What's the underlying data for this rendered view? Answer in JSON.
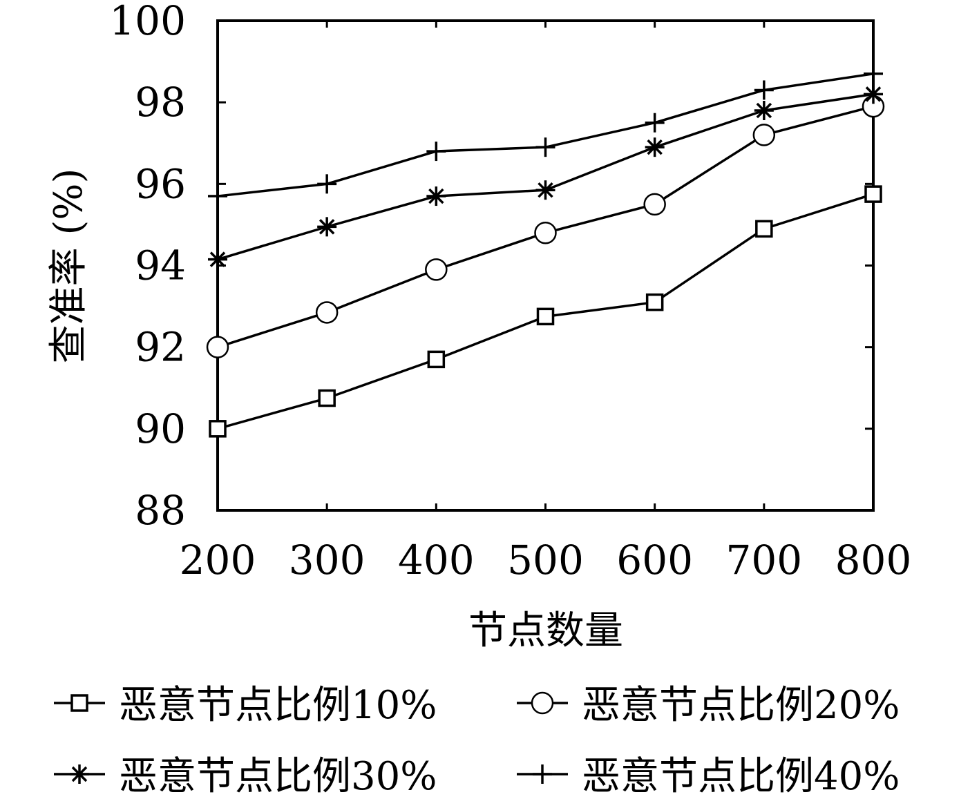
{
  "chart_data": {
    "type": "line",
    "xlabel": "节点数量",
    "ylabel": "查准率 (%)",
    "x": [
      200,
      300,
      400,
      500,
      600,
      700,
      800
    ],
    "xticks": [
      "200",
      "300",
      "400",
      "500",
      "600",
      "700",
      "800"
    ],
    "yticks": [
      "88",
      "90",
      "92",
      "94",
      "96",
      "98",
      "100"
    ],
    "xlim": [
      200,
      800
    ],
    "ylim": [
      88,
      100
    ],
    "grid": false,
    "legend_position": "bottom",
    "line_color": "#000000",
    "series": [
      {
        "name": "恶意节点比例10%",
        "marker": "square",
        "values": [
          90.0,
          90.75,
          91.7,
          92.75,
          93.1,
          94.9,
          95.75
        ]
      },
      {
        "name": "恶意节点比例20%",
        "marker": "circle",
        "values": [
          92.0,
          92.85,
          93.9,
          94.8,
          95.5,
          97.2,
          97.9
        ]
      },
      {
        "name": "恶意节点比例30%",
        "marker": "star",
        "values": [
          94.15,
          94.95,
          95.7,
          95.85,
          96.9,
          97.8,
          98.2
        ]
      },
      {
        "name": "恶意节点比例40%",
        "marker": "plus",
        "values": [
          95.7,
          96.0,
          96.8,
          96.9,
          97.5,
          98.3,
          98.7
        ]
      }
    ]
  }
}
